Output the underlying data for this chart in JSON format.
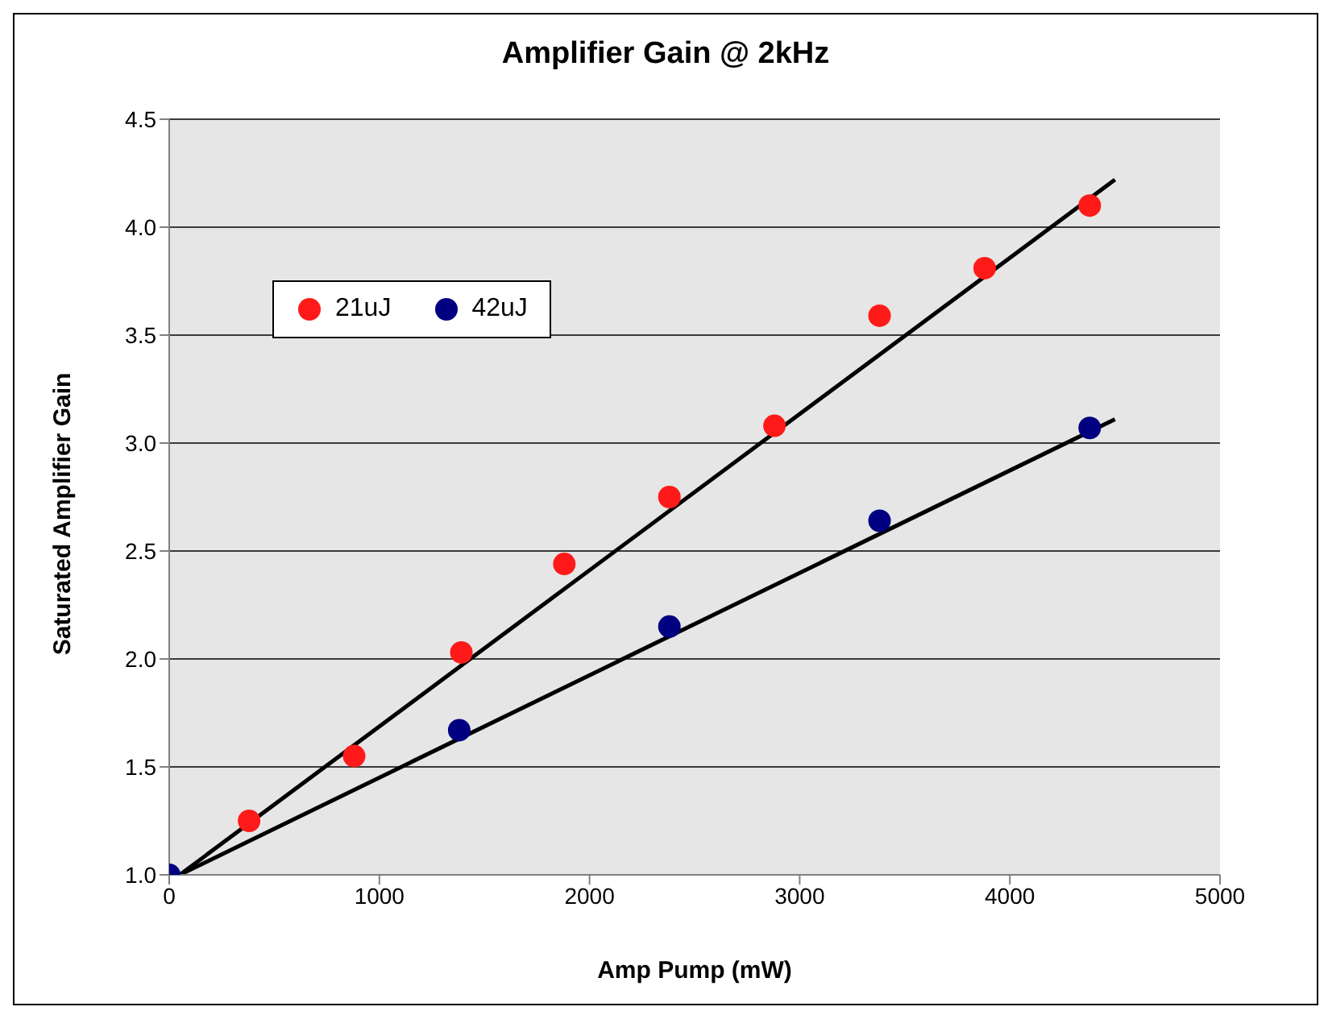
{
  "chart_data": {
    "type": "scatter",
    "title": "Amplifier Gain @ 2kHz",
    "xlabel": "Amp Pump (mW)",
    "ylabel": "Saturated Amplifier Gain",
    "xlim": [
      0,
      5000
    ],
    "xticks": [
      0,
      1000,
      2000,
      3000,
      4000,
      5000
    ],
    "ylim": [
      1.0,
      4.5
    ],
    "yticks": [
      {
        "value": 1.0,
        "label": "1.0"
      },
      {
        "value": 1.5,
        "label": "1.5"
      },
      {
        "value": 2.0,
        "label": "2.0"
      },
      {
        "value": 2.5,
        "label": "2.5"
      },
      {
        "value": 3.0,
        "label": "3.0"
      },
      {
        "value": 3.5,
        "label": "3.5"
      },
      {
        "value": 4.0,
        "label": "4.0"
      },
      {
        "value": 4.5,
        "label": "4.5"
      }
    ],
    "grid": "y",
    "legend": "top left",
    "marker": "circle",
    "series": [
      {
        "name": "21uJ",
        "color": "#ff1a1a",
        "x": [
          380,
          880,
          1390,
          1880,
          2380,
          2880,
          3380,
          3880,
          4380
        ],
        "values": [
          1.25,
          1.55,
          2.03,
          2.44,
          2.75,
          3.08,
          3.59,
          3.81,
          4.1
        ]
      },
      {
        "name": "42uJ",
        "color": "#000080",
        "x": [
          0,
          1380,
          2380,
          3380,
          4380
        ],
        "values": [
          1.0,
          1.67,
          2.15,
          2.64,
          3.07
        ]
      },
      {
        "type": "line",
        "color": "#000000",
        "marker": "none",
        "x": [
          50,
          4500
        ],
        "values": [
          1.0,
          4.22
        ]
      },
      {
        "type": "line",
        "color": "#000000",
        "marker": "none",
        "x": [
          50,
          4500
        ],
        "values": [
          1.0,
          3.11
        ]
      }
    ]
  }
}
